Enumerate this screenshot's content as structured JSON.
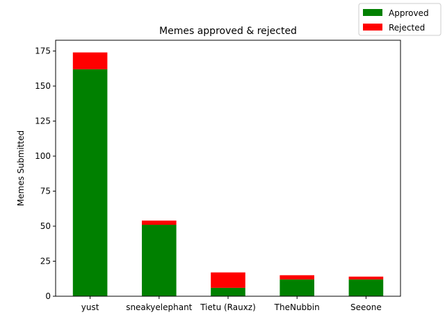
{
  "chart_data": {
    "type": "bar",
    "stacked": true,
    "title": "Memes approved & rejected",
    "xlabel": "",
    "ylabel": "Memes Submitted",
    "categories": [
      "yust",
      "sneakyelephant",
      "Tietu (Rauxz)",
      "TheNubbin",
      "Seeone"
    ],
    "series": [
      {
        "name": "Approved",
        "color": "#008000",
        "values": [
          162,
          51,
          6,
          12,
          12
        ]
      },
      {
        "name": "Rejected",
        "color": "#ff0000",
        "values": [
          12,
          3,
          11,
          3,
          2
        ]
      }
    ],
    "ylim": [
      0,
      182.7
    ],
    "yticks": [
      0,
      25,
      50,
      75,
      100,
      125,
      150,
      175
    ],
    "grid": false,
    "legend_position": "top-right"
  }
}
